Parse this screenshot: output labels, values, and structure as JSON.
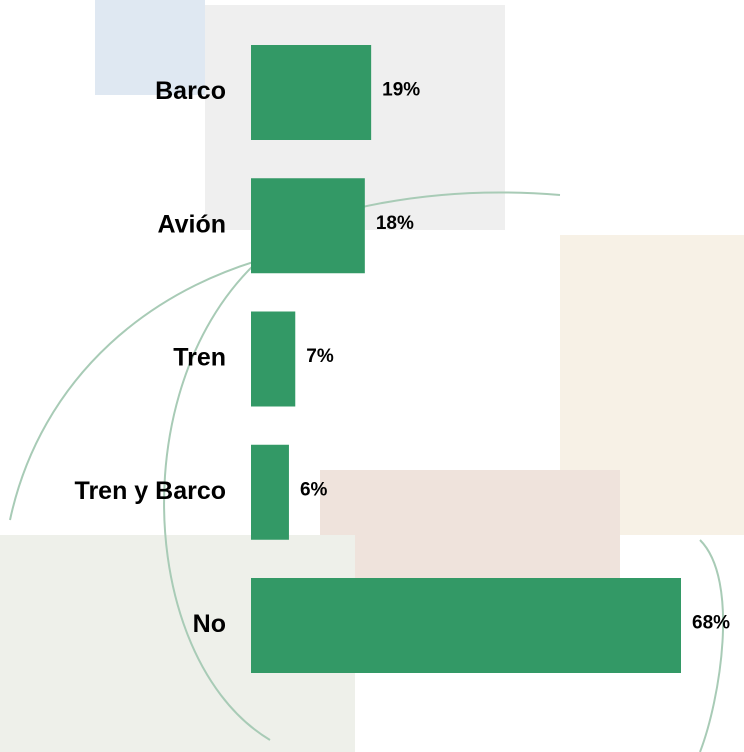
{
  "chart_data": {
    "type": "barh",
    "categories": [
      "Barco",
      "Avión",
      "Tren",
      "Tren y Barco",
      "No"
    ],
    "values": [
      19,
      18,
      7,
      6,
      68
    ],
    "value_labels": [
      "19%",
      "18%",
      "7%",
      "6%",
      "68%"
    ],
    "color": "#339966"
  }
}
